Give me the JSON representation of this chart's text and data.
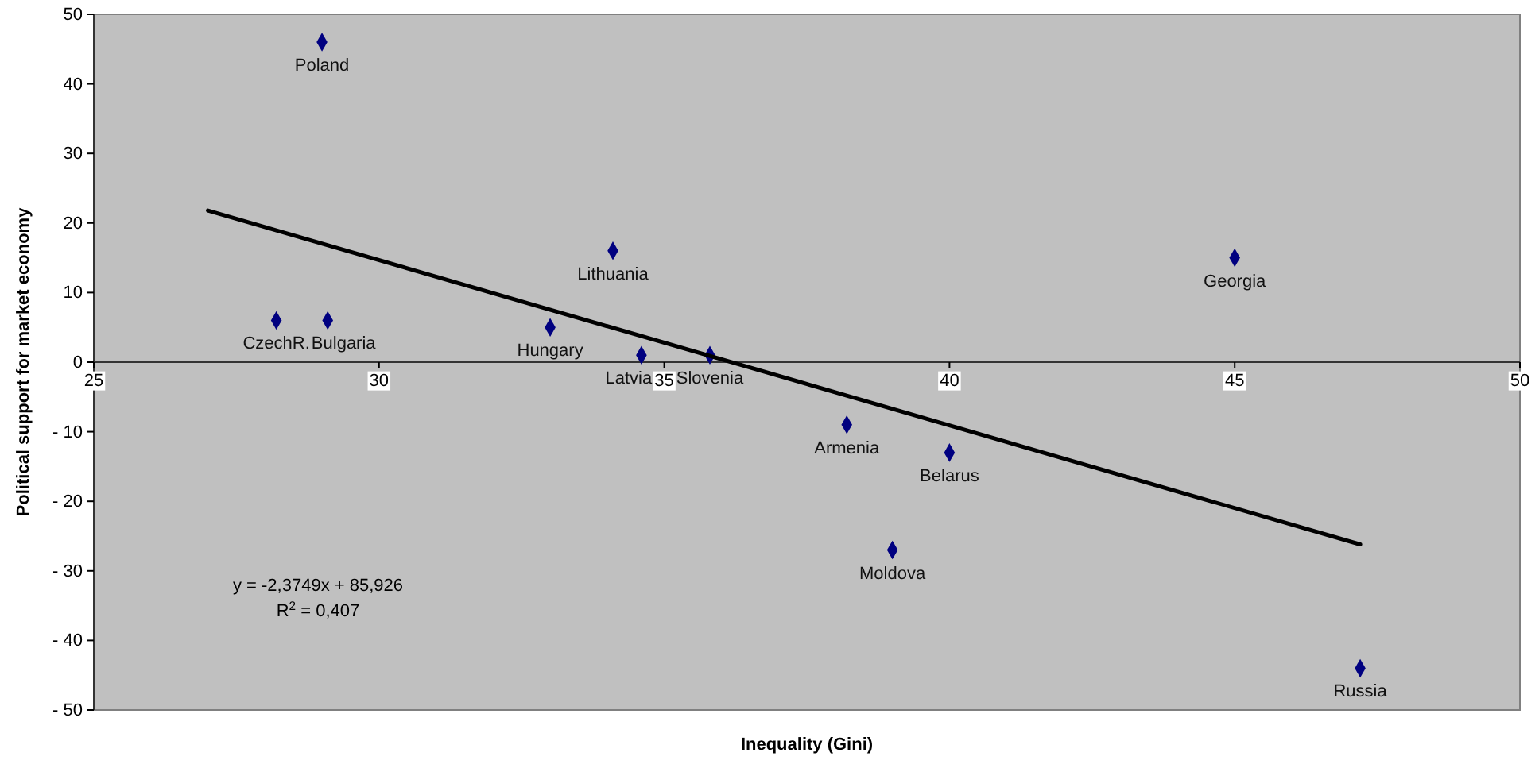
{
  "chart_data": {
    "type": "scatter",
    "xlabel": "Inequality (Gini)",
    "ylabel": "Political support for market economy",
    "xlim": [
      25,
      50
    ],
    "xticks": [
      25,
      30,
      35,
      40,
      45,
      50
    ],
    "ylim": [
      -50,
      50
    ],
    "yticks": [
      {
        "value": -50,
        "label": "- 50"
      },
      {
        "value": -40,
        "label": "- 40"
      },
      {
        "value": -30,
        "label": "- 30"
      },
      {
        "value": -20,
        "label": "- 20"
      },
      {
        "value": -10,
        "label": "- 10"
      },
      0,
      10,
      20,
      30,
      40,
      50
    ],
    "marker": "diamond",
    "series": [
      {
        "color": "#000080",
        "x": [
          29.0,
          28.2,
          29.1,
          33.0,
          34.1,
          34.6,
          35.8,
          38.2,
          40.0,
          39.0,
          45.0,
          47.2
        ],
        "values": [
          46,
          6,
          6,
          5,
          16,
          1,
          1,
          -9,
          -13,
          -27,
          15,
          -44
        ]
      },
      {
        "type": "line",
        "color": "#000000",
        "marker": "none",
        "line_style": "solid",
        "x": [
          27.0,
          47.2
        ],
        "values": [
          21.8,
          -26.2
        ]
      }
    ],
    "annotations": [
      {
        "text": "Poland",
        "x": 29.0,
        "y": 46
      },
      {
        "text": "CzechR.",
        "x": 28.2,
        "y": 6
      },
      {
        "text": "Bulgaria",
        "x": 29.1,
        "y": 6
      },
      {
        "text": "Hungary",
        "x": 33.0,
        "y": 5
      },
      {
        "text": "Lithuania",
        "x": 34.1,
        "y": 16
      },
      {
        "text": "Latvia",
        "x": 34.6,
        "y": 1
      },
      {
        "text": "Slovenia",
        "x": 35.8,
        "y": 1
      },
      {
        "text": "Armenia",
        "x": 38.2,
        "y": -9
      },
      {
        "text": "Belarus",
        "x": 40.0,
        "y": -13
      },
      {
        "text": "Moldova",
        "x": 39.0,
        "y": -27
      },
      {
        "text": "Georgia",
        "x": 45.0,
        "y": 15
      },
      {
        "text": "Russia",
        "x": 47.2,
        "y": -44
      },
      "y = -2,3749x + 85,926",
      "R$^{2}$ = 0,407"
    ]
  }
}
